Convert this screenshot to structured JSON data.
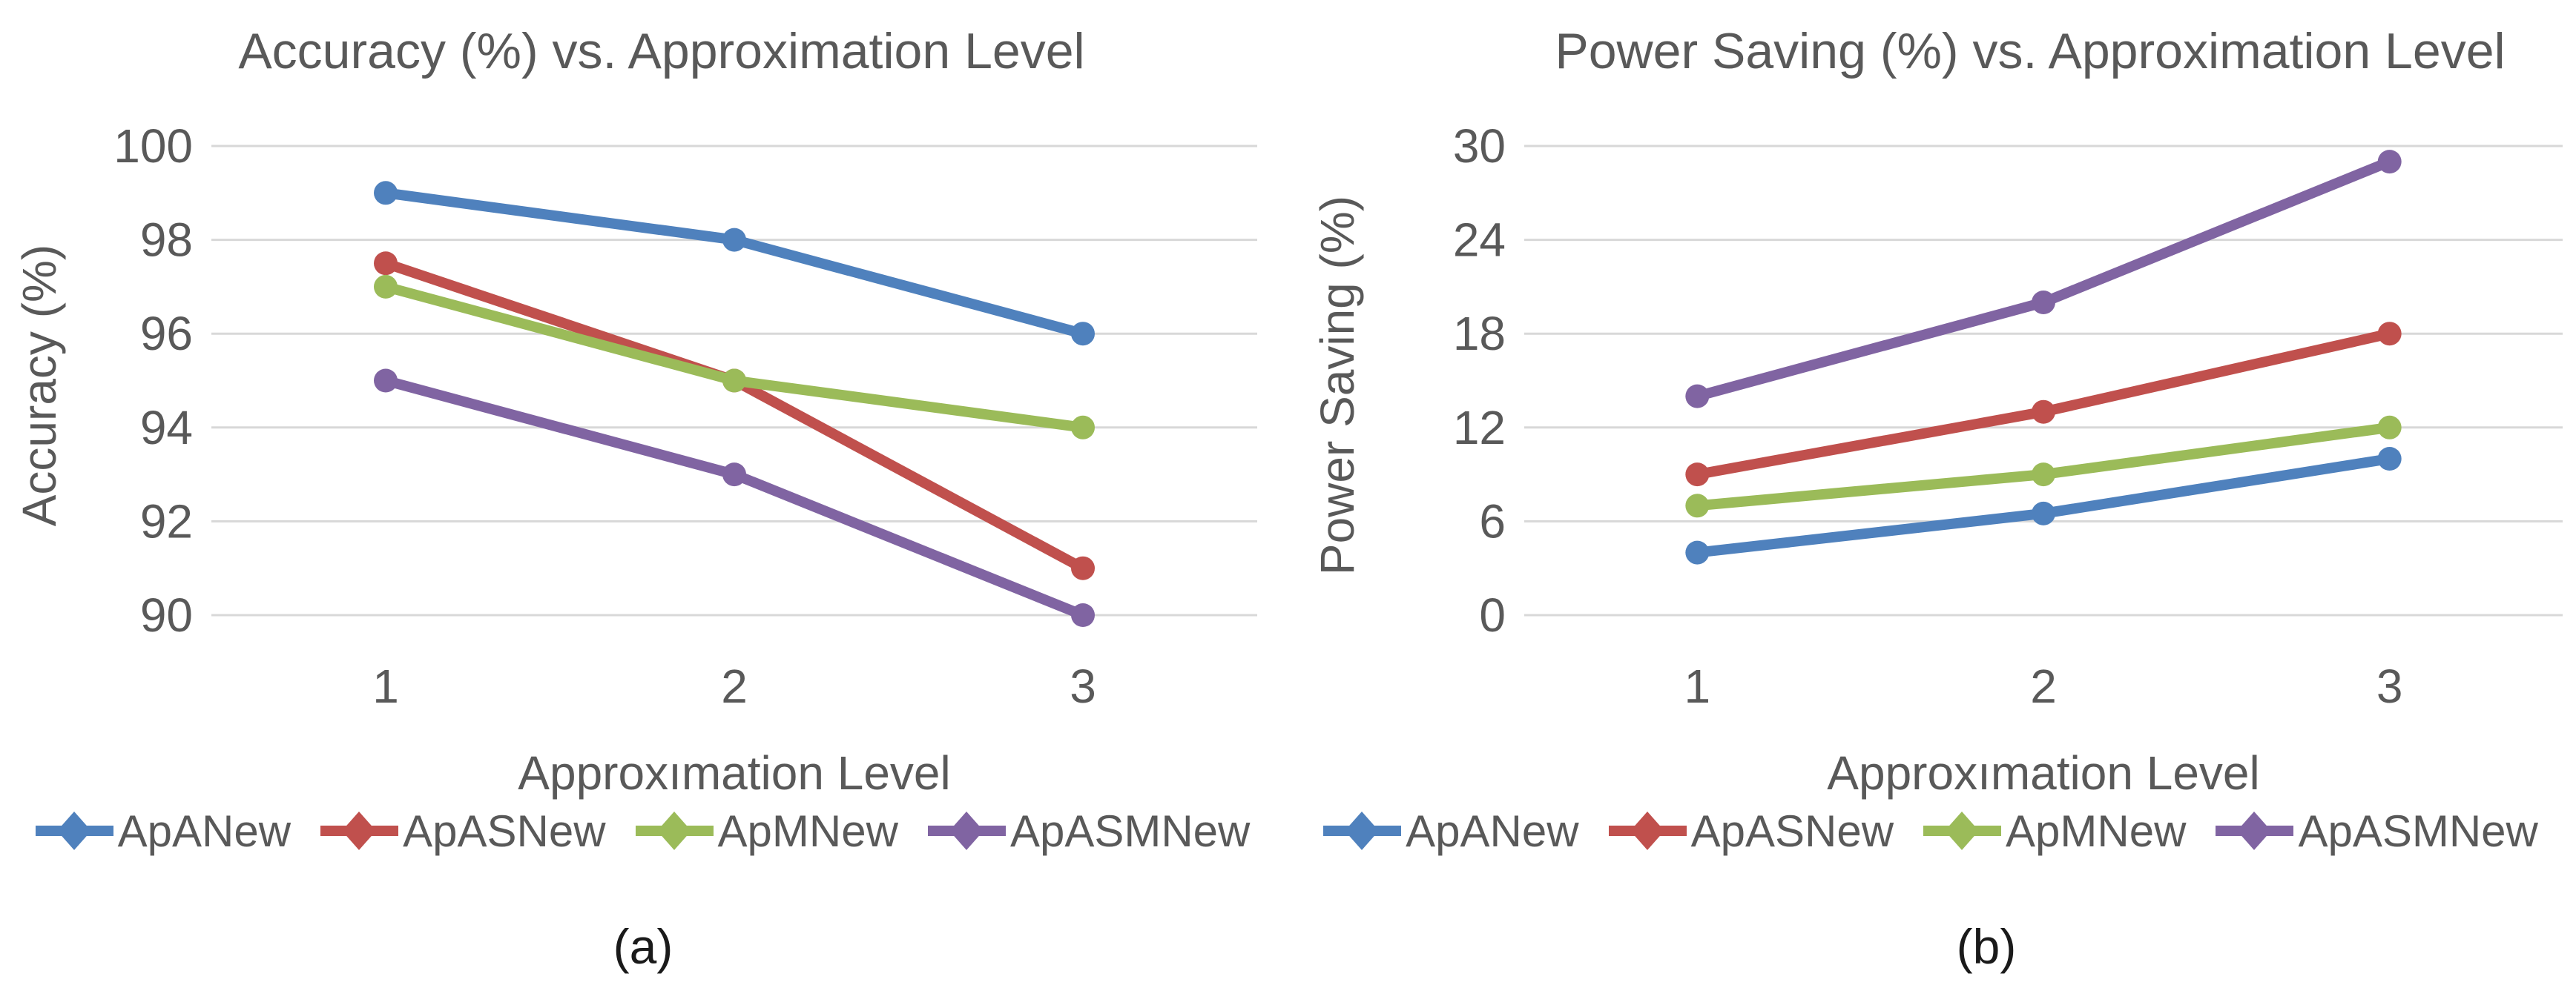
{
  "figure": {
    "background": "#FFFFFF",
    "text_color": "#595959",
    "grid_color": "#D8D8D8",
    "caption_color": "#1A1A1A"
  },
  "chart_data": [
    {
      "type": "line",
      "title": "Accuracy (%) vs. Approximation Level",
      "xlabel": "Approxımation Level",
      "ylabel": "Accuracy (%)",
      "caption": "(a)",
      "categories": [
        1,
        2,
        3
      ],
      "ylim": [
        90,
        100
      ],
      "yticks": [
        90,
        92,
        94,
        96,
        98,
        100
      ],
      "grid": true,
      "legend_position": "bottom",
      "series": [
        {
          "name": "ApANew",
          "color": "#4F81BD",
          "values": [
            99,
            98,
            96
          ]
        },
        {
          "name": "ApASNew",
          "color": "#C0504D",
          "values": [
            97.5,
            95,
            91
          ]
        },
        {
          "name": "ApMNew",
          "color": "#9BBB59",
          "values": [
            97,
            95,
            94
          ]
        },
        {
          "name": "ApASMNew",
          "color": "#8064A2",
          "values": [
            95,
            93,
            90
          ]
        }
      ]
    },
    {
      "type": "line",
      "title": "Power Saving (%) vs. Approximation Level",
      "xlabel": "Approxımation Level",
      "ylabel": "Power Saving (%)",
      "caption": "(b)",
      "categories": [
        1,
        2,
        3
      ],
      "ylim": [
        0,
        30
      ],
      "yticks": [
        0,
        6,
        12,
        18,
        24,
        30
      ],
      "grid": true,
      "legend_position": "bottom",
      "series": [
        {
          "name": "ApANew",
          "color": "#4F81BD",
          "values": [
            4,
            6.5,
            10
          ]
        },
        {
          "name": "ApASNew",
          "color": "#C0504D",
          "values": [
            9,
            13,
            18
          ]
        },
        {
          "name": "ApMNew",
          "color": "#9BBB59",
          "values": [
            7,
            9,
            12
          ]
        },
        {
          "name": "ApASMNew",
          "color": "#8064A2",
          "values": [
            14,
            20,
            29
          ]
        }
      ]
    }
  ]
}
